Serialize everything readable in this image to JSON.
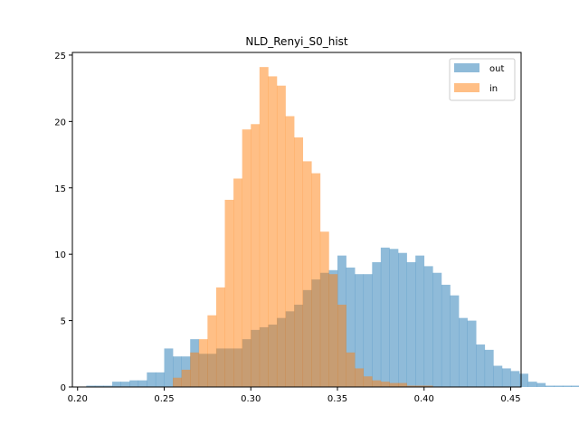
{
  "chart_data": {
    "type": "histogram",
    "title": "NLD_Renyi_S0_hist",
    "xlabel": "",
    "ylabel": "",
    "xlim": [
      0.197,
      0.456
    ],
    "ylim": [
      0,
      25.2
    ],
    "x_ticks": [
      0.2,
      0.25,
      0.3,
      0.35,
      0.4,
      0.45
    ],
    "x_tick_labels": [
      "0.20",
      "0.25",
      "0.30",
      "0.35",
      "0.40",
      "0.45"
    ],
    "y_ticks": [
      0,
      5,
      10,
      15,
      20,
      25
    ],
    "y_tick_labels": [
      "0",
      "5",
      "10",
      "15",
      "20",
      "25"
    ],
    "grid": false,
    "legend_position": "top-right",
    "bin_width": 0.005,
    "series": [
      {
        "name": "out",
        "color": "#1f77b4",
        "alpha": 0.5,
        "bin_start": 0.205,
        "values": [
          0.1,
          0.1,
          0.1,
          0.4,
          0.4,
          0.5,
          0.5,
          1.1,
          1.1,
          2.9,
          2.3,
          2.3,
          3.6,
          2.5,
          2.5,
          2.9,
          2.9,
          2.9,
          3.6,
          4.3,
          4.5,
          4.7,
          5.2,
          5.7,
          6.2,
          7.3,
          8.1,
          8.6,
          8.8,
          9.9,
          9.0,
          8.5,
          8.5,
          9.4,
          10.5,
          10.4,
          10.1,
          9.4,
          9.9,
          9.1,
          8.6,
          7.7,
          6.9,
          5.2,
          5.0,
          3.2,
          2.8,
          1.6,
          1.4,
          1.2,
          1.0,
          0.4,
          0.3,
          0.1,
          0.1,
          0.1,
          0.1,
          0.1
        ]
      },
      {
        "name": "in",
        "color": "#ff7f0e",
        "alpha": 0.5,
        "bin_start": 0.255,
        "values": [
          0.7,
          1.3,
          2.6,
          3.6,
          5.4,
          7.5,
          14.1,
          15.7,
          19.4,
          19.8,
          24.1,
          23.4,
          22.7,
          20.4,
          18.8,
          17.0,
          16.1,
          11.7,
          8.5,
          6.2,
          2.6,
          1.4,
          0.8,
          0.5,
          0.4,
          0.3,
          0.3,
          0.1,
          0.1,
          0.1
        ]
      }
    ]
  }
}
